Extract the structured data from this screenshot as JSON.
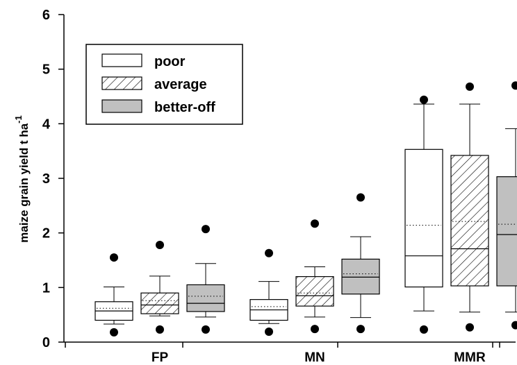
{
  "chart_data": {
    "type": "box",
    "ylabel": "maize grain yield t ha",
    "ylabel_superscript": "-1",
    "ylim": [
      0,
      6
    ],
    "yticks": [
      "0",
      "1",
      "2",
      "3",
      "4",
      "5",
      "6"
    ],
    "categories": [
      "FP",
      "MN",
      "MMR"
    ],
    "series": [
      {
        "name": "poor",
        "fill": "#ffffff",
        "pattern": "none",
        "boxes": [
          {
            "whisker_low": 0.33,
            "q1": 0.4,
            "median": 0.57,
            "mean": 0.62,
            "q3": 0.74,
            "whisker_high": 1.01,
            "outlier_low": 0.18,
            "outlier_high": 1.55
          },
          {
            "whisker_low": 0.34,
            "q1": 0.4,
            "median": 0.59,
            "mean": 0.65,
            "q3": 0.78,
            "whisker_high": 1.11,
            "outlier_low": 0.19,
            "outlier_high": 1.63
          },
          {
            "whisker_low": 0.57,
            "q1": 1.01,
            "median": 1.58,
            "mean": 2.14,
            "q3": 3.53,
            "whisker_high": 4.36,
            "outlier_low": 0.23,
            "outlier_high": 4.44
          }
        ]
      },
      {
        "name": "average",
        "fill": "#ffffff",
        "pattern": "diagonal-hatch",
        "boxes": [
          {
            "whisker_low": 0.48,
            "q1": 0.52,
            "median": 0.68,
            "mean": 0.76,
            "q3": 0.9,
            "whisker_high": 1.21,
            "outlier_low": 0.23,
            "outlier_high": 1.78
          },
          {
            "whisker_low": 0.46,
            "q1": 0.66,
            "median": 0.85,
            "mean": 0.9,
            "q3": 1.2,
            "whisker_high": 1.38,
            "outlier_low": 0.24,
            "outlier_high": 2.17
          },
          {
            "whisker_low": 0.55,
            "q1": 1.03,
            "median": 1.71,
            "mean": 2.21,
            "q3": 3.42,
            "whisker_high": 4.36,
            "outlier_low": 0.27,
            "outlier_high": 4.68
          }
        ]
      },
      {
        "name": "better-off",
        "fill": "#c0c0c0",
        "pattern": "none",
        "boxes": [
          {
            "whisker_low": 0.46,
            "q1": 0.56,
            "median": 0.71,
            "mean": 0.84,
            "q3": 1.05,
            "whisker_high": 1.44,
            "outlier_low": 0.23,
            "outlier_high": 2.07
          },
          {
            "whisker_low": 0.45,
            "q1": 0.88,
            "median": 1.19,
            "mean": 1.25,
            "q3": 1.52,
            "whisker_high": 1.93,
            "outlier_low": 0.24,
            "outlier_high": 2.65
          },
          {
            "whisker_low": 0.55,
            "q1": 1.03,
            "median": 1.97,
            "mean": 2.16,
            "q3": 3.03,
            "whisker_high": 3.91,
            "outlier_low": 0.31,
            "outlier_high": 4.7
          }
        ]
      }
    ],
    "legend": {
      "placement": "top-left",
      "entries": [
        "poor",
        "average",
        "better-off"
      ]
    },
    "grid": false
  }
}
